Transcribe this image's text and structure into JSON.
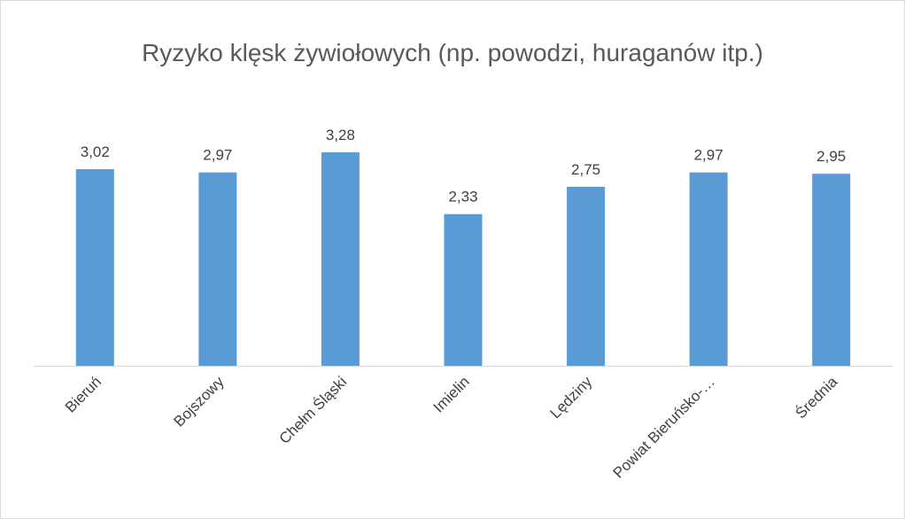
{
  "chart_data": {
    "type": "bar",
    "title": "Ryzyko klęsk żywiołowych (np. powodzi, huraganów itp.)",
    "categories": [
      "Bieruń",
      "Bojszowy",
      "Chełm Śląski",
      "Imielin",
      "Lędziny",
      "Powiat Bieruńsko-…",
      "Średnia"
    ],
    "values": [
      3.02,
      2.97,
      3.28,
      2.33,
      2.75,
      2.97,
      2.95
    ],
    "value_labels": [
      "3,02",
      "2,97",
      "3,28",
      "2,33",
      "2,75",
      "2,97",
      "2,95"
    ],
    "color": "#5b9bd5",
    "ylim": [
      0,
      3.5
    ]
  }
}
